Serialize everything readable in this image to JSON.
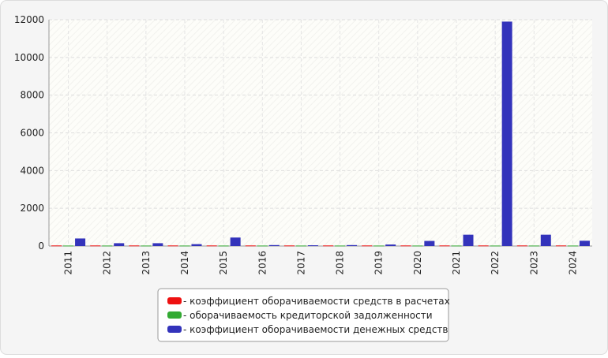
{
  "chart_data": {
    "type": "bar",
    "categories": [
      "2011",
      "2012",
      "2013",
      "2014",
      "2015",
      "2016",
      "2017",
      "2018",
      "2019",
      "2020",
      "2021",
      "2022",
      "2023",
      "2024"
    ],
    "series": [
      {
        "name": "- коэффициент оборачиваемости средств в расчетах",
        "color": "#ee1111",
        "values": [
          30,
          30,
          30,
          30,
          30,
          30,
          30,
          30,
          30,
          30,
          30,
          30,
          30,
          30
        ]
      },
      {
        "name": "- оборачиваемость кредиторской задолженности",
        "color": "#33aa33",
        "values": [
          25,
          25,
          25,
          25,
          25,
          25,
          25,
          25,
          25,
          25,
          25,
          25,
          25,
          25
        ]
      },
      {
        "name": "- коэффициент оборачиваемости денежных средств",
        "color": "#3333bb",
        "values": [
          400,
          150,
          150,
          100,
          450,
          50,
          40,
          50,
          80,
          270,
          600,
          11900,
          600,
          280
        ]
      }
    ],
    "ylim": [
      0,
      12000
    ],
    "yticks": [
      0,
      2000,
      4000,
      6000,
      8000,
      10000,
      12000
    ],
    "grid": true
  }
}
